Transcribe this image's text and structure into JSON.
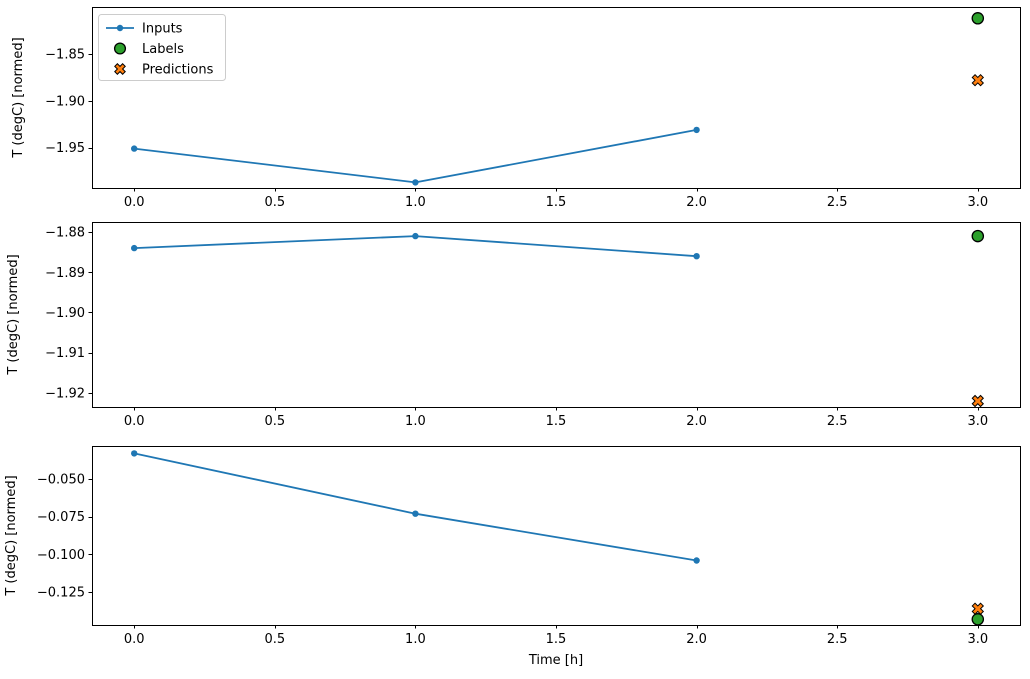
{
  "figure": {
    "background": "#ffffff"
  },
  "colors": {
    "inputs": "#1f77b4",
    "labels": "#2ca02c",
    "predictions": "#ff7f0e",
    "marker_edge": "#000000",
    "axis": "#000000",
    "text": "#000000",
    "legend_border": "#cccccc",
    "legend_background": "#ffffff"
  },
  "xlabel": "Time [h]",
  "ylabel": "T (degC) [normed]",
  "legend": {
    "position": "upper left",
    "items": [
      {
        "label": "Inputs",
        "marker": "line-dot",
        "color": "#1f77b4"
      },
      {
        "label": "Labels",
        "marker": "circle",
        "color": "#2ca02c"
      },
      {
        "label": "Predictions",
        "marker": "X",
        "color": "#ff7f0e"
      }
    ]
  },
  "chart_data": [
    {
      "type": "line",
      "title": "",
      "ylabel": "T (degC) [normed]",
      "xlim": [
        -0.15,
        3.15
      ],
      "ylim": [
        -1.993,
        -1.8
      ],
      "xticks": [
        0,
        0.5,
        1,
        1.5,
        2,
        2.5,
        3
      ],
      "xtick_labels": [
        "0.0",
        "0.5",
        "1.0",
        "1.5",
        "2.0",
        "2.5",
        "3.0"
      ],
      "yticks": [
        -1.85,
        -1.9,
        -1.95
      ],
      "ytick_labels": [
        "−1.85",
        "−1.90",
        "−1.95"
      ],
      "grid": false,
      "legend": true,
      "xlabel_show": false,
      "series": [
        {
          "name": "Inputs",
          "kind": "line",
          "marker": "dot",
          "x": [
            0,
            1,
            2
          ],
          "y": [
            -1.951,
            -1.987,
            -1.931
          ]
        },
        {
          "name": "Labels",
          "kind": "scatter",
          "marker": "circle",
          "x": [
            3
          ],
          "y": [
            -1.812
          ]
        },
        {
          "name": "Predictions",
          "kind": "scatter",
          "marker": "X",
          "x": [
            3
          ],
          "y": [
            -1.878
          ]
        }
      ]
    },
    {
      "type": "line",
      "title": "",
      "ylabel": "T (degC) [normed]",
      "xlim": [
        -0.15,
        3.15
      ],
      "ylim": [
        -1.9235,
        -1.8775
      ],
      "xticks": [
        0,
        0.5,
        1,
        1.5,
        2,
        2.5,
        3
      ],
      "xtick_labels": [
        "0.0",
        "0.5",
        "1.0",
        "1.5",
        "2.0",
        "2.5",
        "3.0"
      ],
      "yticks": [
        -1.88,
        -1.89,
        -1.9,
        -1.91,
        -1.92
      ],
      "ytick_labels": [
        "−1.88",
        "−1.89",
        "−1.90",
        "−1.91",
        "−1.92"
      ],
      "grid": false,
      "legend": false,
      "xlabel_show": false,
      "series": [
        {
          "name": "Inputs",
          "kind": "line",
          "marker": "dot",
          "x": [
            0,
            1,
            2
          ],
          "y": [
            -1.884,
            -1.881,
            -1.886
          ]
        },
        {
          "name": "Labels",
          "kind": "scatter",
          "marker": "circle",
          "x": [
            3
          ],
          "y": [
            -1.881
          ]
        },
        {
          "name": "Predictions",
          "kind": "scatter",
          "marker": "X",
          "x": [
            3
          ],
          "y": [
            -1.922
          ]
        }
      ]
    },
    {
      "type": "line",
      "title": "",
      "ylabel": "T (degC) [normed]",
      "xlabel": "Time [h]",
      "xlim": [
        -0.15,
        3.15
      ],
      "ylim": [
        -0.1468,
        -0.0281
      ],
      "xticks": [
        0,
        0.5,
        1,
        1.5,
        2,
        2.5,
        3
      ],
      "xtick_labels": [
        "0.0",
        "0.5",
        "1.0",
        "1.5",
        "2.0",
        "2.5",
        "3.0"
      ],
      "yticks": [
        -0.05,
        -0.075,
        -0.1,
        -0.125
      ],
      "ytick_labels": [
        "−0.050",
        "−0.075",
        "−0.100",
        "−0.125"
      ],
      "grid": false,
      "legend": false,
      "xlabel_show": true,
      "series": [
        {
          "name": "Inputs",
          "kind": "line",
          "marker": "dot",
          "x": [
            0,
            1,
            2
          ],
          "y": [
            -0.033,
            -0.073,
            -0.104
          ]
        },
        {
          "name": "Labels",
          "kind": "scatter",
          "marker": "circle",
          "x": [
            3
          ],
          "y": [
            -0.143
          ]
        },
        {
          "name": "Predictions",
          "kind": "scatter",
          "marker": "X",
          "x": [
            3
          ],
          "y": [
            -0.136
          ]
        }
      ]
    }
  ]
}
